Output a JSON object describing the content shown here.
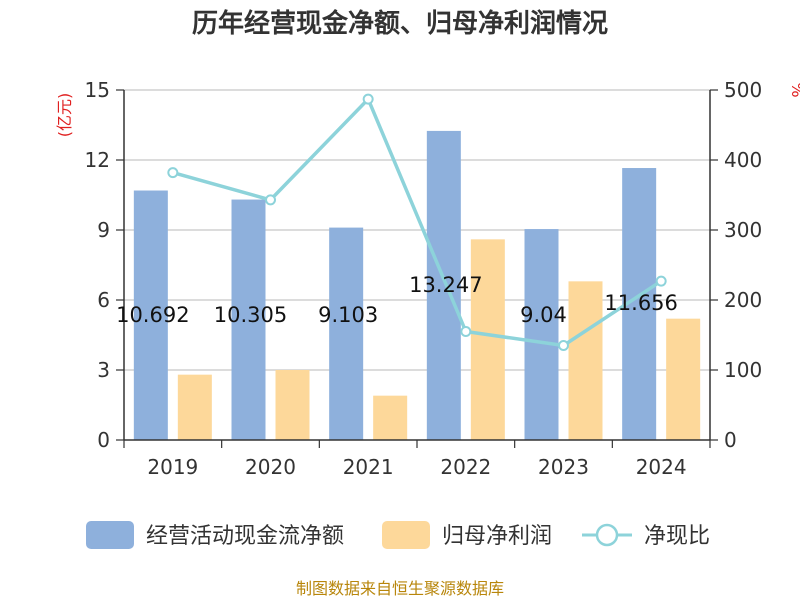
{
  "chart_data": {
    "type": "bar",
    "title": "历年经营现金净额、归母净利润情况",
    "categories": [
      "2019",
      "2020",
      "2021",
      "2022",
      "2023",
      "2024"
    ],
    "series": [
      {
        "name": "经营活动现金流净额",
        "type": "bar",
        "axis": "left",
        "color": "#8eb0dc",
        "values": [
          10.692,
          10.305,
          9.103,
          13.247,
          9.04,
          11.656
        ]
      },
      {
        "name": "归母净利润",
        "type": "bar",
        "axis": "left",
        "color": "#fdd89a",
        "values": [
          2.8,
          3.0,
          1.9,
          8.6,
          6.8,
          5.2
        ]
      },
      {
        "name": "净现比",
        "type": "line",
        "axis": "right",
        "color": "#8dd3da",
        "values": [
          382,
          343,
          487,
          155,
          135,
          227
        ]
      }
    ],
    "data_labels": [
      "10.692",
      "10.305",
      "9.103",
      "13.247",
      "9.04",
      "11.656"
    ],
    "y_left": {
      "unit": "(亿元)",
      "ylim": [
        0,
        15
      ],
      "ticks": [
        "0",
        "3",
        "6",
        "9",
        "12",
        "15"
      ]
    },
    "y_right": {
      "unit": "%",
      "ylim": [
        0,
        500
      ],
      "ticks": [
        "0",
        "100",
        "200",
        "300",
        "400",
        "500"
      ]
    },
    "grid": true,
    "legend_position": "bottom"
  },
  "source": "制图数据来自恒生聚源数据库"
}
